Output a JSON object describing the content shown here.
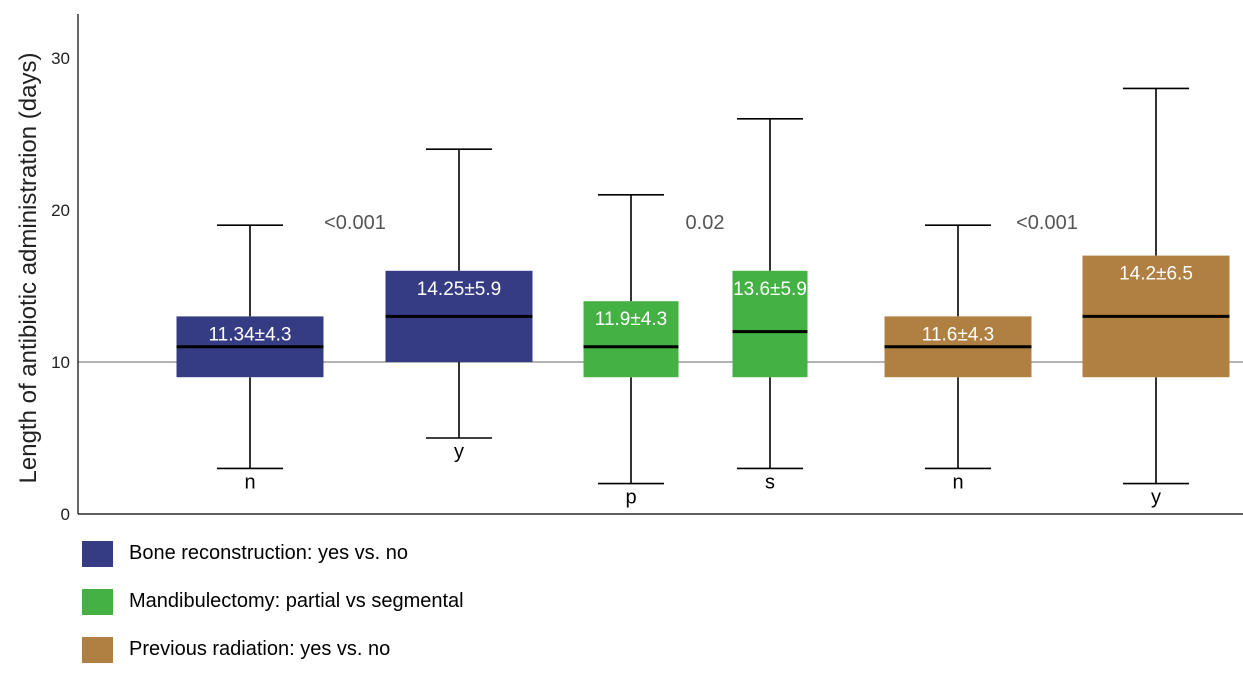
{
  "chart_data": {
    "type": "boxplot",
    "ylabel": "Length of antibiotic administration (days)",
    "xlabel": "",
    "ylim": [
      0,
      33
    ],
    "yticks": [
      0,
      10,
      20,
      30
    ],
    "reference_line": 10,
    "groups": [
      {
        "name": "Bone reconstruction: yes vs. no",
        "color": "#363c84",
        "p_value": "<0.001",
        "boxes": [
          {
            "category": "n",
            "min": 3,
            "q1": 9,
            "median": 11,
            "q3": 13,
            "max": 19,
            "label": "11.34±4.3"
          },
          {
            "category": "y",
            "min": 5,
            "q1": 10,
            "median": 13,
            "q3": 16,
            "max": 24,
            "label": "14.25±5.9"
          }
        ]
      },
      {
        "name": "Mandibulectomy: partial vs segmental",
        "color": "#43b143",
        "p_value": "0.02",
        "boxes": [
          {
            "category": "p",
            "min": 2,
            "q1": 9,
            "median": 11,
            "q3": 14,
            "max": 21,
            "label": "11.9±4.3"
          },
          {
            "category": "s",
            "min": 3,
            "q1": 9,
            "median": 12,
            "q3": 16,
            "max": 26,
            "label": "13.6±5.9"
          }
        ]
      },
      {
        "name": "Previous radiation: yes vs. no",
        "color": "#b07f42",
        "p_value": "<0.001",
        "boxes": [
          {
            "category": "n",
            "min": 3,
            "q1": 9,
            "median": 11,
            "q3": 13,
            "max": 19,
            "label": "11.6±4.3"
          },
          {
            "category": "y",
            "min": 2,
            "q1": 9,
            "median": 13,
            "q3": 17,
            "max": 28,
            "label": "14.2±6.5"
          }
        ]
      }
    ]
  }
}
